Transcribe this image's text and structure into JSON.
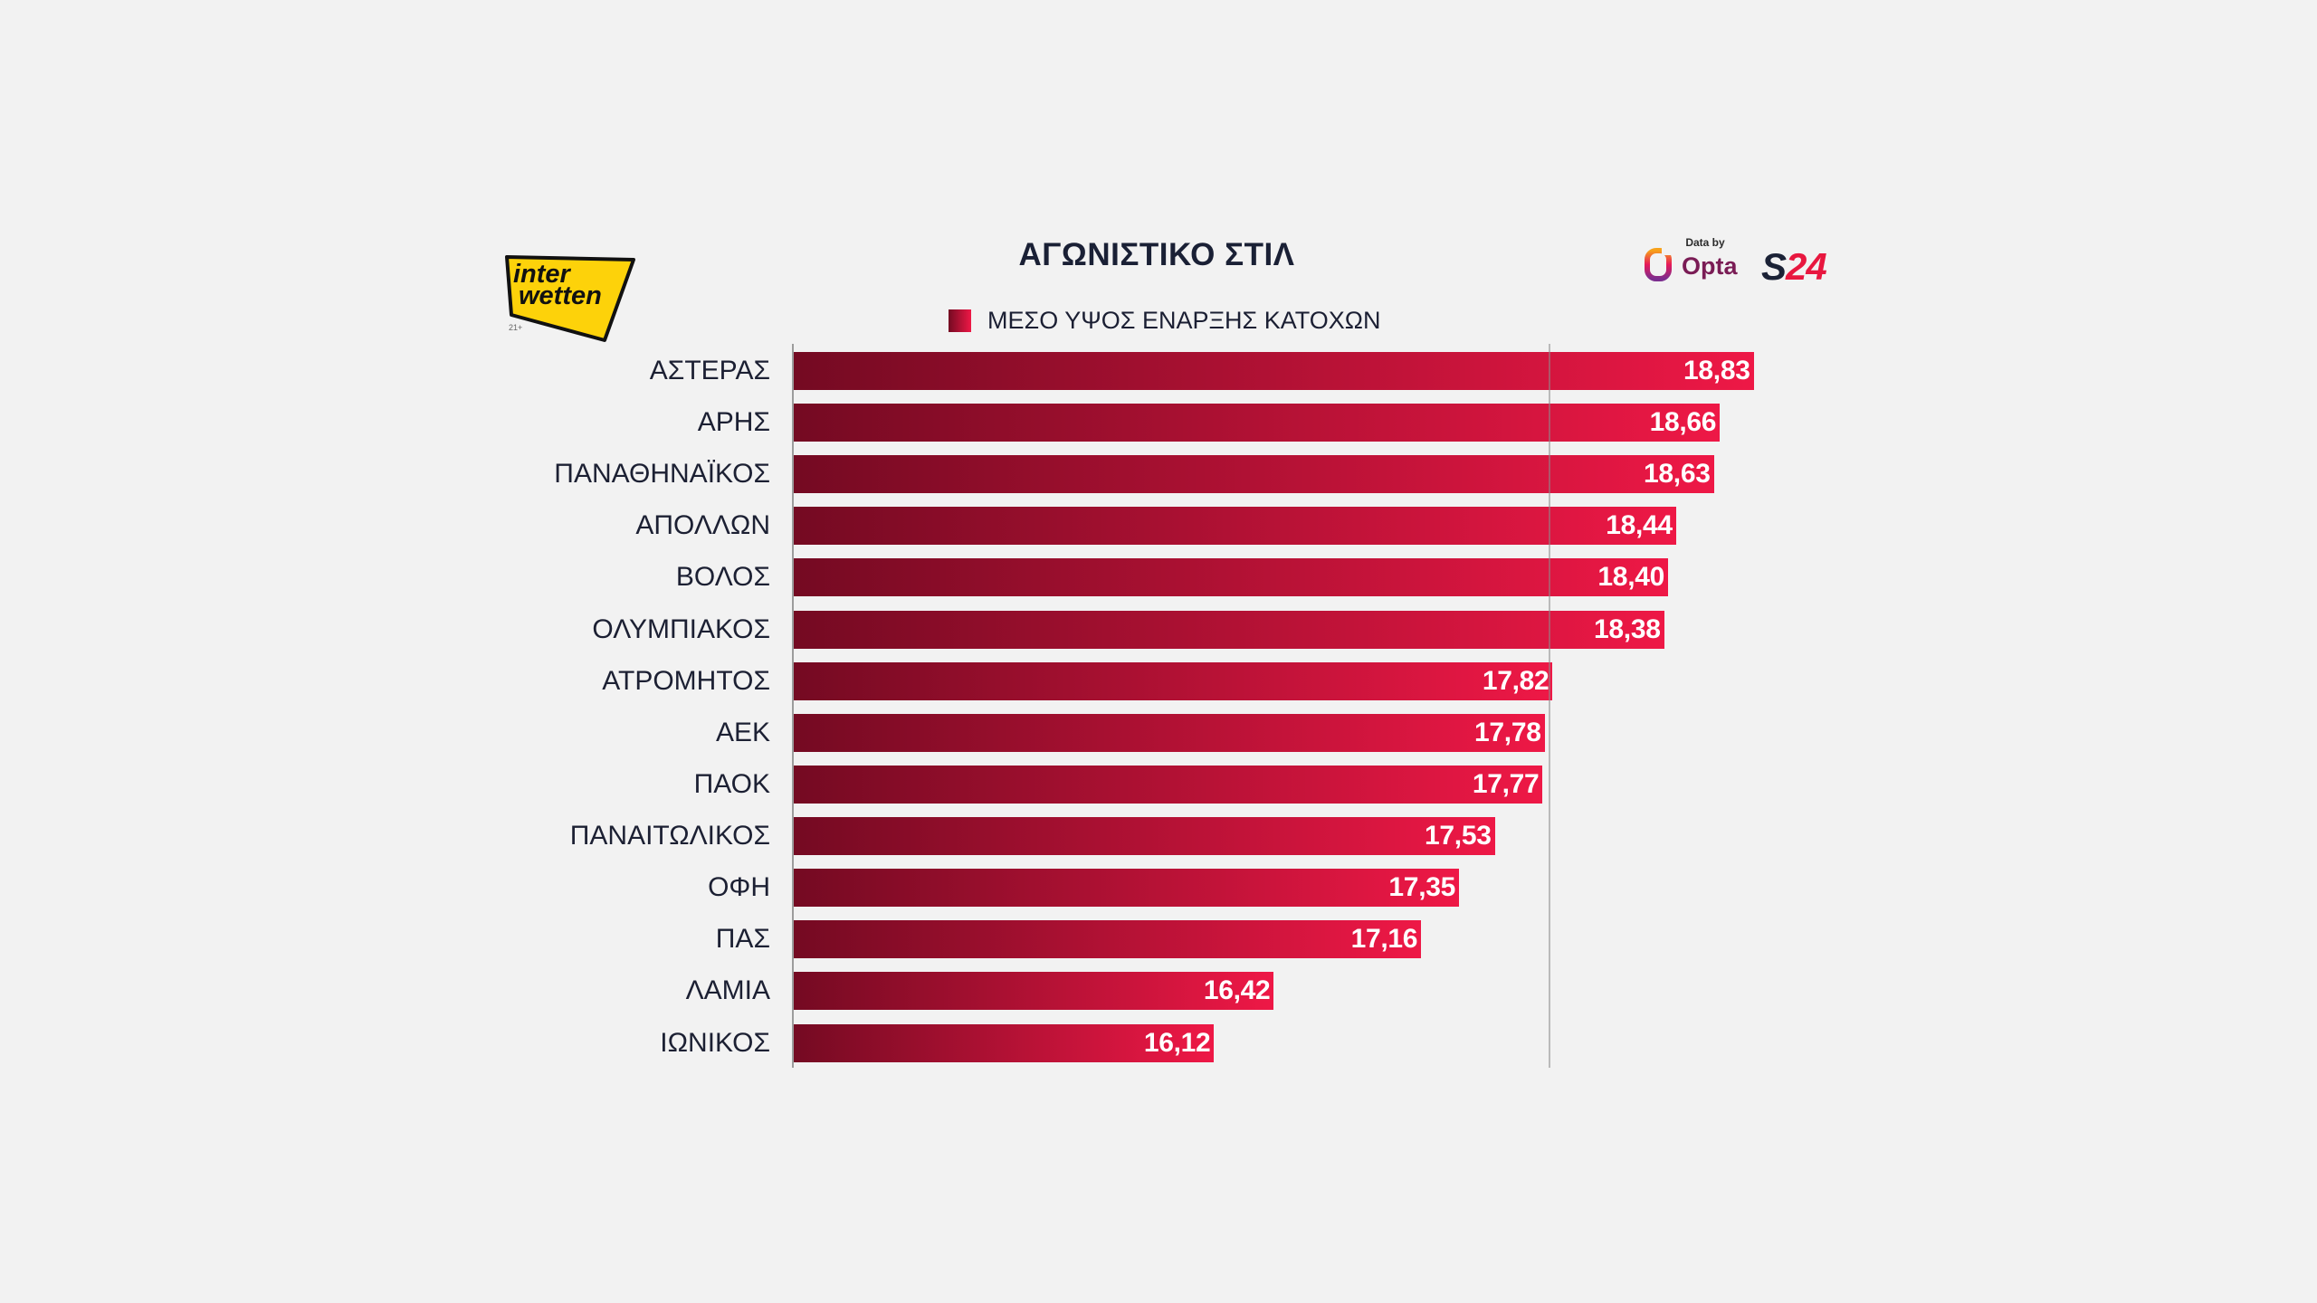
{
  "header": {
    "data_by": "Data by"
  },
  "logos": {
    "sponsor_line1": "inter",
    "sponsor_line2": "wetten",
    "sponsor_age": "21+",
    "opta": "Opta",
    "s24_s": "S",
    "s24_num": "24"
  },
  "colors": {
    "background": "#f2f2f2",
    "bar_start": "#740a22",
    "bar_end": "#ee1846",
    "label_text": "#1c2033",
    "value_text": "#ffffff",
    "sponsor_yellow": "#fdd20a",
    "opta_text": "#7a1c55",
    "s24_navy": "#1b2236",
    "s24_red": "#e8173f"
  },
  "chart_data": {
    "type": "bar",
    "orientation": "horizontal",
    "title": "ΑΓΩΝΙΣΤΙΚΟ ΣΤΙΛ",
    "categories": [
      "ΑΣΤΕΡΑΣ",
      "ΑΡΗΣ",
      "ΠΑΝΑΘΗΝΑΪΚΟΣ",
      "ΑΠΟΛΛΩΝ",
      "ΒΟΛΟΣ",
      "ΟΛΥΜΠΙΑΚΟΣ",
      "ΑΤΡΟΜΗΤΟΣ",
      "ΑΕΚ",
      "ΠΑΟΚ",
      "ΠΑΝΑΙΤΩΛΙΚΟΣ",
      "ΟΦΗ",
      "ΠΑΣ",
      "ΛΑΜΙΑ",
      "ΙΩΝΙΚΟΣ"
    ],
    "series": [
      {
        "name": "ΜΕΣΟ ΥΨΟΣ ΕΝΑΡΞΗΣ ΚΑΤΟΧΩΝ",
        "values": [
          18.83,
          18.66,
          18.63,
          18.44,
          18.4,
          18.38,
          17.82,
          17.78,
          17.77,
          17.53,
          17.35,
          17.16,
          16.42,
          16.12
        ]
      }
    ],
    "xlim": [
      14,
      21.6
    ],
    "grid": true,
    "data_labels": true,
    "legend_position": "top-center"
  }
}
